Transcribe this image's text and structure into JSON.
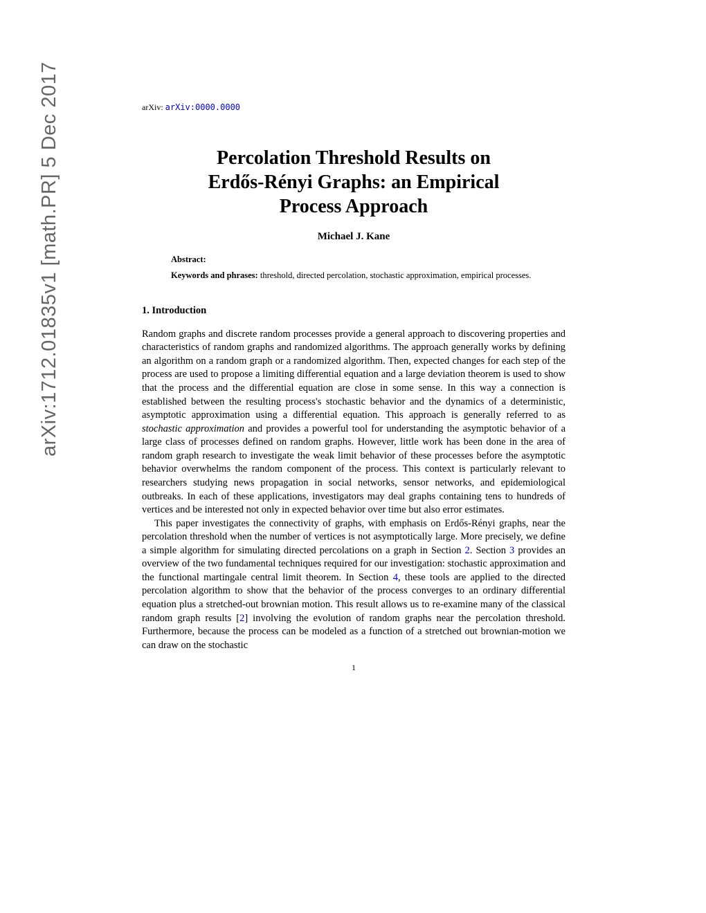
{
  "sidebar": {
    "text": "arXiv:1712.01835v1  [math.PR]  5 Dec 2017"
  },
  "header": {
    "arxiv_prefix": "arXiv: ",
    "arxiv_link": "arXiv:0000.0000"
  },
  "title": {
    "line1": "Percolation Threshold Results on",
    "line2": "Erdős-Rényi Graphs: an Empirical",
    "line3": "Process Approach"
  },
  "author": "Michael J. Kane",
  "abstract": {
    "label": "Abstract:",
    "keywords_label": "Keywords and phrases:",
    "keywords_text": " threshold, directed percolation, stochastic approximation, empirical processes."
  },
  "section": {
    "heading": "1. Introduction"
  },
  "paragraphs": {
    "p1a": "Random graphs and discrete random processes provide a general approach to discovering properties and characteristics of random graphs and randomized algorithms. The approach generally works by defining an algorithm on a random graph or a randomized algorithm. Then, expected changes for each step of the process are used to propose a limiting differential equation and a large deviation theorem is used to show that the process and the differential equation are close in some sense. In this way a connection is established between the resulting process's stochastic behavior and the dynamics of a deterministic, asymptotic approximation using a differential equation. This approach is generally referred to as ",
    "p1_italic": "stochastic approximation",
    "p1b": " and provides a powerful tool for understanding the asymptotic behavior of a large class of processes defined on random graphs. However, little work has been done in the area of random graph research to investigate the weak limit behavior of these processes before the asymptotic behavior overwhelms the random component of the process. This context is particularly relevant to researchers studying news propagation in social networks, sensor networks, and epidemiological outbreaks. In each of these applications, investigators may deal graphs containing tens to hundreds of vertices and be interested not only in expected behavior over time but also error estimates.",
    "p2a": "This paper investigates the connectivity of graphs, with emphasis on Erdős-Rényi graphs, near the percolation threshold when the number of vertices is not asymptotically large. More precisely, we define a simple algorithm for simulating directed percolations on a graph in Section ",
    "p2_ref1": "2",
    "p2b": ". Section ",
    "p2_ref2": "3",
    "p2c": " provides an overview of the two fundamental techniques required for our investigation: stochastic approximation and the functional martingale central limit theorem. In Section ",
    "p2_ref3": "4",
    "p2d": ", these tools are applied to the directed percolation algorithm to show that the behavior of the process converges to an ordinary differential equation plus a stretched-out brownian motion. This result allows us to re-examine many of the classical random graph results [",
    "p2_ref4": "2",
    "p2e": "] involving the evolution of random graphs near the percolation threshold. Furthermore, because the process can be modeled as a function of a stretched out brownian-motion we can draw on the stochastic"
  },
  "page_number": "1",
  "colors": {
    "link": "#0000dd",
    "sidebar": "#666666",
    "text": "#000000",
    "background": "#ffffff"
  }
}
